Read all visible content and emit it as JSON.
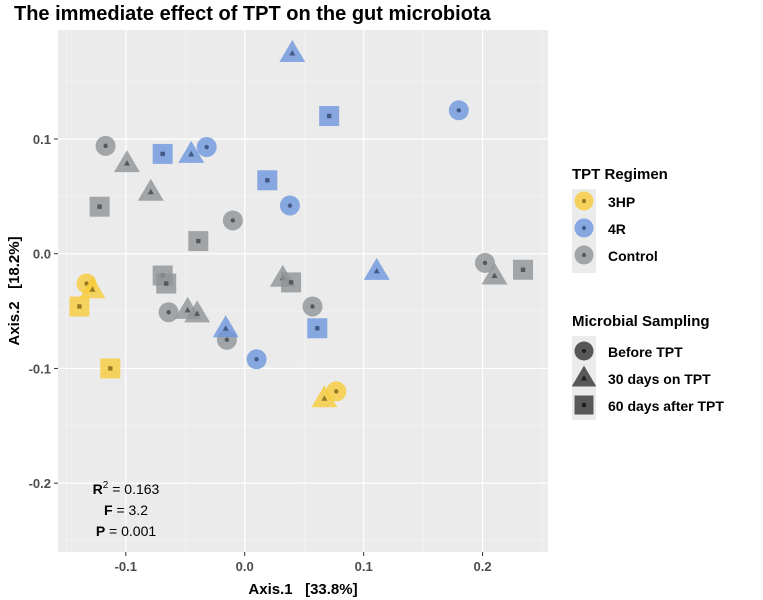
{
  "chart_data": {
    "type": "scatter",
    "title": "The immediate effect of TPT on the gut microbiota",
    "xlabel": "Axis.1   [33.8%]",
    "ylabel": "Axis.2   [18.2%]",
    "xlim": [
      -0.157,
      0.255
    ],
    "ylim": [
      -0.26,
      0.195
    ],
    "xticks": [
      -0.1,
      0.0,
      0.1,
      0.2
    ],
    "xtick_labels": [
      "-0.1",
      "0.0",
      "0.1",
      "0.2"
    ],
    "yticks": [
      -0.2,
      -0.1,
      0.0,
      0.1
    ],
    "ytick_labels": [
      "-0.2",
      "-0.1",
      "0.0",
      "0.1"
    ],
    "grid": true,
    "legend_placement": "right",
    "legend_color": {
      "title": "TPT Regimen",
      "entries": [
        {
          "label": "3HP",
          "color": "#F8CC3A"
        },
        {
          "label": "4R",
          "color": "#6E96DE"
        },
        {
          "label": "Control",
          "color": "#8E9396"
        }
      ]
    },
    "legend_shape": {
      "title": "Microbial Sampling",
      "entries": [
        {
          "label": "Before TPT",
          "shape": "circle"
        },
        {
          "label": "30 days on TPT",
          "shape": "triangle"
        },
        {
          "label": "60 days after TPT",
          "shape": "square"
        }
      ]
    },
    "annotation": {
      "r2_label": "R",
      "r2_sup": "2",
      "r2_value": " = 0.163",
      "f_label": "F",
      "f_value": " = 3.2",
      "p_label": "P",
      "p_value": " = 0.001"
    },
    "series": [
      {
        "name": "Control",
        "points": [
          {
            "x": -0.117,
            "y": 0.094,
            "shape": "circle"
          },
          {
            "x": -0.099,
            "y": 0.079,
            "shape": "triangle"
          },
          {
            "x": -0.079,
            "y": 0.054,
            "shape": "triangle"
          },
          {
            "x": -0.122,
            "y": 0.041,
            "shape": "square"
          },
          {
            "x": -0.01,
            "y": 0.029,
            "shape": "circle"
          },
          {
            "x": -0.039,
            "y": 0.011,
            "shape": "square"
          },
          {
            "x": -0.069,
            "y": -0.019,
            "shape": "square"
          },
          {
            "x": -0.066,
            "y": -0.026,
            "shape": "square"
          },
          {
            "x": -0.064,
            "y": -0.051,
            "shape": "circle"
          },
          {
            "x": -0.048,
            "y": -0.049,
            "shape": "triangle"
          },
          {
            "x": -0.04,
            "y": -0.052,
            "shape": "triangle"
          },
          {
            "x": -0.015,
            "y": -0.075,
            "shape": "circle"
          },
          {
            "x": 0.032,
            "y": -0.021,
            "shape": "triangle"
          },
          {
            "x": 0.039,
            "y": -0.025,
            "shape": "square"
          },
          {
            "x": 0.057,
            "y": -0.046,
            "shape": "circle"
          },
          {
            "x": 0.202,
            "y": -0.008,
            "shape": "circle"
          },
          {
            "x": 0.21,
            "y": -0.019,
            "shape": "triangle"
          },
          {
            "x": 0.234,
            "y": -0.014,
            "shape": "square"
          }
        ]
      },
      {
        "name": "4R",
        "points": [
          {
            "x": 0.04,
            "y": 0.175,
            "shape": "triangle"
          },
          {
            "x": 0.071,
            "y": 0.12,
            "shape": "square"
          },
          {
            "x": 0.18,
            "y": 0.125,
            "shape": "circle"
          },
          {
            "x": -0.069,
            "y": 0.087,
            "shape": "square"
          },
          {
            "x": -0.045,
            "y": 0.087,
            "shape": "triangle"
          },
          {
            "x": -0.032,
            "y": 0.093,
            "shape": "circle"
          },
          {
            "x": 0.019,
            "y": 0.064,
            "shape": "square"
          },
          {
            "x": 0.038,
            "y": 0.042,
            "shape": "circle"
          },
          {
            "x": 0.111,
            "y": -0.015,
            "shape": "triangle"
          },
          {
            "x": -0.016,
            "y": -0.065,
            "shape": "triangle"
          },
          {
            "x": 0.01,
            "y": -0.092,
            "shape": "circle"
          },
          {
            "x": 0.061,
            "y": -0.065,
            "shape": "square"
          }
        ]
      },
      {
        "name": "3HP",
        "points": [
          {
            "x": -0.133,
            "y": -0.026,
            "shape": "circle"
          },
          {
            "x": -0.128,
            "y": -0.031,
            "shape": "triangle"
          },
          {
            "x": -0.139,
            "y": -0.046,
            "shape": "square"
          },
          {
            "x": -0.113,
            "y": -0.1,
            "shape": "square"
          },
          {
            "x": 0.067,
            "y": -0.126,
            "shape": "triangle"
          },
          {
            "x": 0.077,
            "y": -0.12,
            "shape": "circle"
          }
        ]
      }
    ]
  }
}
